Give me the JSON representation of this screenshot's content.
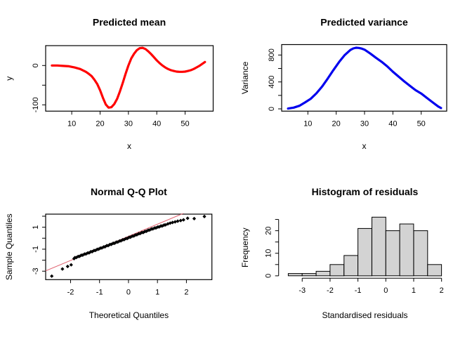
{
  "figure_background": "#ffffff",
  "text_color": "#000000",
  "chart_data": [
    {
      "type": "line",
      "title": "Predicted mean",
      "xlabel": "x",
      "ylabel": "y",
      "series_color": "#FF0000",
      "line_width": 3.2,
      "xlim": [
        0.8,
        59.9
      ],
      "ylim": [
        -116,
        50.5
      ],
      "xticks": [
        10,
        20,
        30,
        40,
        50
      ],
      "xtick_labels": [
        "10",
        "20",
        "30",
        "40",
        "50"
      ],
      "yticks": [
        -100,
        -50,
        0
      ],
      "ytick_labels": [
        "-100",
        "",
        "0"
      ],
      "grid": false,
      "x": [
        3,
        5,
        7,
        9,
        11,
        13,
        15,
        16,
        17,
        18,
        19,
        20,
        21,
        22,
        23,
        24,
        25,
        26,
        27,
        28,
        29,
        30,
        31,
        32,
        33,
        34,
        35,
        36,
        37,
        38,
        39,
        40,
        41,
        42,
        43,
        44,
        45,
        46,
        47,
        48,
        49,
        50,
        51,
        52,
        53,
        54,
        55,
        56,
        57
      ],
      "y": [
        0,
        0,
        -1,
        -2,
        -5,
        -9,
        -16,
        -21,
        -27,
        -36,
        -47,
        -63,
        -82,
        -99,
        -107,
        -106,
        -98,
        -85,
        -66,
        -44,
        -21,
        0,
        18,
        30,
        39,
        44,
        45,
        42,
        36,
        29,
        21,
        13,
        6,
        0,
        -5,
        -9,
        -12,
        -14,
        -15.5,
        -16,
        -16,
        -15.5,
        -14,
        -12,
        -9,
        -5,
        -1,
        4,
        9
      ]
    },
    {
      "type": "line",
      "title": "Predicted variance",
      "xlabel": "x",
      "ylabel": "Variance",
      "series_color": "#0000EE",
      "line_width": 3.2,
      "xlim": [
        0.75,
        59.0
      ],
      "ylim": [
        -34,
        955
      ],
      "xticks": [
        10,
        20,
        30,
        40,
        50
      ],
      "xtick_labels": [
        "10",
        "20",
        "30",
        "40",
        "50"
      ],
      "yticks": [
        0,
        200,
        400,
        600,
        800
      ],
      "ytick_labels": [
        "0",
        "",
        "400",
        "",
        "800"
      ],
      "grid": false,
      "x": [
        3,
        5,
        7,
        9,
        11,
        13,
        15,
        17,
        19,
        21,
        23,
        25,
        26,
        27,
        28,
        29,
        30,
        32,
        34,
        36,
        38,
        40,
        42,
        44,
        46,
        48,
        50,
        52,
        54,
        56,
        57
      ],
      "y": [
        5,
        18,
        45,
        95,
        150,
        230,
        330,
        450,
        575,
        695,
        800,
        875,
        898,
        908,
        905,
        896,
        880,
        822,
        760,
        700,
        632,
        552,
        480,
        408,
        342,
        278,
        228,
        162,
        98,
        35,
        12
      ]
    },
    {
      "type": "scatter",
      "title": "Normal Q-Q Plot",
      "xlabel": "Theoretical Quantiles",
      "ylabel": "Sample Quantiles",
      "point_color": "#000000",
      "marker": "diamond",
      "ref_line": {
        "slope": 1.1,
        "intercept": 0.175,
        "color": "#E0606E",
        "width": 1
      },
      "xlim": [
        -2.86,
        2.88
      ],
      "ylim": [
        -3.77,
        2.19
      ],
      "xticks": [
        -2,
        -1,
        0,
        1,
        2
      ],
      "xtick_labels": [
        "-2",
        "-1",
        "0",
        "1",
        "2"
      ],
      "yticks": [
        -3,
        -2,
        -1,
        0,
        1,
        2
      ],
      "ytick_labels": [
        "-3",
        "",
        "-1",
        "",
        "1",
        ""
      ],
      "grid": false,
      "points": [
        [
          -2.65,
          -3.45
        ],
        [
          -2.28,
          -2.8
        ],
        [
          -2.1,
          -2.57
        ],
        [
          -1.98,
          -2.42
        ],
        [
          -1.88,
          -1.86
        ],
        [
          -1.85,
          -1.77
        ],
        [
          -1.8,
          -1.76
        ],
        [
          -1.74,
          -1.66
        ],
        [
          -1.69,
          -1.65
        ],
        [
          -1.63,
          -1.55
        ],
        [
          -1.58,
          -1.54
        ],
        [
          -1.52,
          -1.44
        ],
        [
          -1.47,
          -1.44
        ],
        [
          -1.41,
          -1.34
        ],
        [
          -1.36,
          -1.33
        ],
        [
          -1.3,
          -1.23
        ],
        [
          -1.25,
          -1.22
        ],
        [
          -1.19,
          -1.12
        ],
        [
          -1.14,
          -1.11
        ],
        [
          -1.08,
          -1.01
        ],
        [
          -1.03,
          -1.0
        ],
        [
          -0.97,
          -0.9
        ],
        [
          -0.92,
          -0.89
        ],
        [
          -0.86,
          -0.79
        ],
        [
          -0.81,
          -0.78
        ],
        [
          -0.75,
          -0.68
        ],
        [
          -0.7,
          -0.67
        ],
        [
          -0.64,
          -0.57
        ],
        [
          -0.59,
          -0.56
        ],
        [
          -0.53,
          -0.46
        ],
        [
          -0.48,
          -0.46
        ],
        [
          -0.42,
          -0.36
        ],
        [
          -0.37,
          -0.35
        ],
        [
          -0.31,
          -0.25
        ],
        [
          -0.26,
          -0.24
        ],
        [
          -0.2,
          -0.14
        ],
        [
          -0.15,
          -0.13
        ],
        [
          -0.09,
          -0.03
        ],
        [
          -0.04,
          -0.02
        ],
        [
          0.02,
          0.08
        ],
        [
          0.07,
          0.09
        ],
        [
          0.13,
          0.19
        ],
        [
          0.18,
          0.2
        ],
        [
          0.24,
          0.3
        ],
        [
          0.29,
          0.31
        ],
        [
          0.35,
          0.41
        ],
        [
          0.4,
          0.42
        ],
        [
          0.46,
          0.52
        ],
        [
          0.51,
          0.52
        ],
        [
          0.57,
          0.62
        ],
        [
          0.62,
          0.63
        ],
        [
          0.68,
          0.73
        ],
        [
          0.73,
          0.74
        ],
        [
          0.79,
          0.84
        ],
        [
          0.84,
          0.85
        ],
        [
          0.9,
          0.93
        ],
        [
          0.95,
          0.94
        ],
        [
          1.01,
          1.02
        ],
        [
          1.06,
          1.03
        ],
        [
          1.12,
          1.11
        ],
        [
          1.17,
          1.12
        ],
        [
          1.23,
          1.2
        ],
        [
          1.28,
          1.21
        ],
        [
          1.36,
          1.3
        ],
        [
          1.44,
          1.37
        ],
        [
          1.52,
          1.43
        ],
        [
          1.61,
          1.49
        ],
        [
          1.7,
          1.55
        ],
        [
          1.8,
          1.61
        ],
        [
          1.9,
          1.67
        ],
        [
          2.04,
          1.81
        ],
        [
          2.27,
          1.78
        ],
        [
          2.62,
          1.97
        ]
      ]
    },
    {
      "type": "hist",
      "title": "Histogram of residuals",
      "xlabel": "Standardised residuals",
      "ylabel": "Frequency",
      "bar_fill": "#D3D3D3",
      "bar_stroke": "#000000",
      "xlim": [
        -3.845,
        2.22
      ],
      "ylim": [
        -1.04,
        27.04
      ],
      "xticks": [
        -3,
        -2,
        -1,
        0,
        1,
        2
      ],
      "xtick_labels": [
        "-3",
        "-2",
        "-1",
        "0",
        "1",
        "2"
      ],
      "yticks": [
        0,
        5,
        10,
        15,
        20,
        25
      ],
      "ytick_labels": [
        "0",
        "",
        "10",
        "",
        "20",
        ""
      ],
      "grid": false,
      "breaks": [
        -3.5,
        -3,
        -2.5,
        -2,
        -1.5,
        -1,
        -0.5,
        0,
        0.5,
        1,
        1.5,
        2
      ],
      "counts": [
        1,
        1,
        2,
        5,
        9,
        21,
        26,
        20,
        23,
        20,
        5
      ]
    }
  ]
}
